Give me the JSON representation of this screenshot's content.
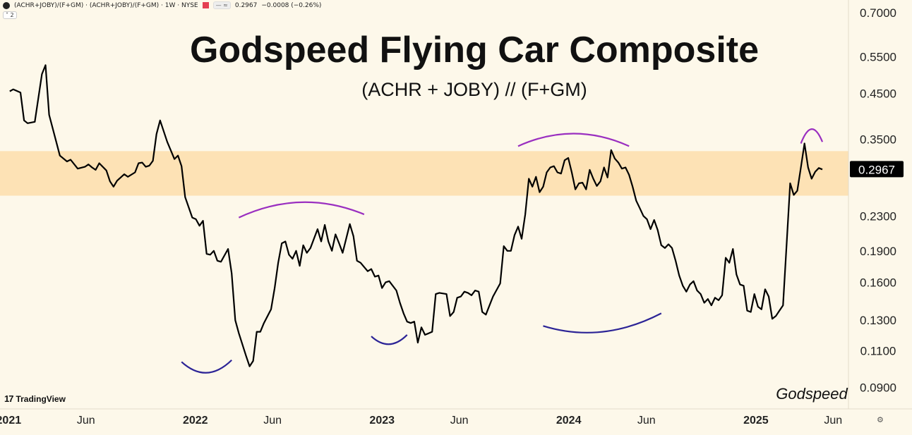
{
  "header": {
    "symbol": "(ACHR+JOBY)/(F+GM) · (ACHR+JOBY)/(F+GM) · 1W · NYSE",
    "price": "0.2967",
    "change": "−0.0008 (−0.26%)",
    "indicator_count": "2"
  },
  "branding": {
    "tradingview": "TradingView",
    "signature": "Godspeed"
  },
  "colors": {
    "background": "#fdf8ea",
    "band": "#fde2b5",
    "line": "#000000",
    "arc_top": "#9a2fc0",
    "arc_bottom": "#2c2496",
    "price_tag_bg": "#000000",
    "price_tag_fg": "#ffffff"
  },
  "icons": [
    "flag-icon",
    "settings-icon",
    "tradingview-logo-icon"
  ],
  "chart_data": {
    "type": "line",
    "title": "Godspeed Flying Car Composite",
    "subtitle": "(ACHR + JOBY) // (F+GM)",
    "xlabel": "",
    "ylabel": "",
    "y_scale": "log",
    "ylim": [
      0.08,
      0.75
    ],
    "x_range": [
      "2020-12-15",
      "2025-07-01"
    ],
    "grid": false,
    "legend": "top-left",
    "x_ticks": [
      {
        "date": "2021-01-01",
        "label": "2021",
        "bold": true
      },
      {
        "date": "2021-06-01",
        "label": "Jun",
        "bold": false
      },
      {
        "date": "2022-01-01",
        "label": "2022",
        "bold": true
      },
      {
        "date": "2022-06-01",
        "label": "Jun",
        "bold": false
      },
      {
        "date": "2023-01-01",
        "label": "2023",
        "bold": true
      },
      {
        "date": "2023-06-01",
        "label": "Jun",
        "bold": false
      },
      {
        "date": "2024-01-01",
        "label": "2024",
        "bold": true
      },
      {
        "date": "2024-06-01",
        "label": "Jun",
        "bold": false
      },
      {
        "date": "2025-01-01",
        "label": "2025",
        "bold": true
      },
      {
        "date": "2025-06-01",
        "label": "Jun",
        "bold": false
      }
    ],
    "y_ticks": [
      {
        "value": 0.7,
        "label": "0.7000"
      },
      {
        "value": 0.55,
        "label": "0.5500"
      },
      {
        "value": 0.45,
        "label": "0.4500"
      },
      {
        "value": 0.35,
        "label": "0.3500"
      },
      {
        "value": 0.23,
        "label": "0.2300"
      },
      {
        "value": 0.19,
        "label": "0.1900"
      },
      {
        "value": 0.16,
        "label": "0.1600"
      },
      {
        "value": 0.13,
        "label": "0.1300"
      },
      {
        "value": 0.11,
        "label": "0.1100"
      },
      {
        "value": 0.09,
        "label": "0.0900"
      }
    ],
    "last_value": 0.2967,
    "last_value_label": "0.2967",
    "band": {
      "low": 0.257,
      "high": 0.328
    },
    "series": [
      {
        "points": [
          [
            "2021-01-03",
            0.455
          ],
          [
            "2021-01-10",
            0.46
          ],
          [
            "2021-01-24",
            0.452
          ],
          [
            "2021-01-31",
            0.388
          ],
          [
            "2021-02-07",
            0.382
          ],
          [
            "2021-02-21",
            0.385
          ],
          [
            "2021-03-07",
            0.5
          ],
          [
            "2021-03-14",
            0.525
          ],
          [
            "2021-03-21",
            0.4
          ],
          [
            "2021-04-04",
            0.345
          ],
          [
            "2021-04-11",
            0.32
          ],
          [
            "2021-04-25",
            0.31
          ],
          [
            "2021-05-02",
            0.313
          ],
          [
            "2021-05-16",
            0.298
          ],
          [
            "2021-05-30",
            0.301
          ],
          [
            "2021-06-06",
            0.305
          ],
          [
            "2021-06-13",
            0.3
          ],
          [
            "2021-06-20",
            0.296
          ],
          [
            "2021-06-27",
            0.307
          ],
          [
            "2021-07-11",
            0.295
          ],
          [
            "2021-07-18",
            0.278
          ],
          [
            "2021-07-25",
            0.27
          ],
          [
            "2021-08-01",
            0.279
          ],
          [
            "2021-08-15",
            0.289
          ],
          [
            "2021-08-22",
            0.285
          ],
          [
            "2021-09-05",
            0.292
          ],
          [
            "2021-09-12",
            0.307
          ],
          [
            "2021-09-19",
            0.308
          ],
          [
            "2021-09-26",
            0.301
          ],
          [
            "2021-10-03",
            0.303
          ],
          [
            "2021-10-10",
            0.311
          ],
          [
            "2021-10-17",
            0.36
          ],
          [
            "2021-10-24",
            0.388
          ],
          [
            "2021-11-07",
            0.345
          ],
          [
            "2021-11-21",
            0.314
          ],
          [
            "2021-11-28",
            0.32
          ],
          [
            "2021-12-05",
            0.302
          ],
          [
            "2021-12-12",
            0.255
          ],
          [
            "2021-12-26",
            0.228
          ],
          [
            "2022-01-02",
            0.226
          ],
          [
            "2022-01-09",
            0.218
          ],
          [
            "2022-01-16",
            0.224
          ],
          [
            "2022-01-23",
            0.187
          ],
          [
            "2022-01-30",
            0.186
          ],
          [
            "2022-02-06",
            0.19
          ],
          [
            "2022-02-13",
            0.18
          ],
          [
            "2022-02-20",
            0.179
          ],
          [
            "2022-03-06",
            0.192
          ],
          [
            "2022-03-13",
            0.168
          ],
          [
            "2022-03-20",
            0.13
          ],
          [
            "2022-03-27",
            0.121
          ],
          [
            "2022-04-10",
            0.107
          ],
          [
            "2022-04-17",
            0.101
          ],
          [
            "2022-04-24",
            0.104
          ],
          [
            "2022-05-01",
            0.122
          ],
          [
            "2022-05-08",
            0.122
          ],
          [
            "2022-05-15",
            0.128
          ],
          [
            "2022-05-29",
            0.138
          ],
          [
            "2022-06-05",
            0.155
          ],
          [
            "2022-06-12",
            0.178
          ],
          [
            "2022-06-19",
            0.198
          ],
          [
            "2022-06-26",
            0.2
          ],
          [
            "2022-07-03",
            0.186
          ],
          [
            "2022-07-10",
            0.182
          ],
          [
            "2022-07-17",
            0.19
          ],
          [
            "2022-07-24",
            0.175
          ],
          [
            "2022-07-31",
            0.196
          ],
          [
            "2022-08-07",
            0.188
          ],
          [
            "2022-08-14",
            0.193
          ],
          [
            "2022-08-28",
            0.214
          ],
          [
            "2022-09-04",
            0.2
          ],
          [
            "2022-09-11",
            0.219
          ],
          [
            "2022-09-18",
            0.2
          ],
          [
            "2022-09-25",
            0.19
          ],
          [
            "2022-10-02",
            0.208
          ],
          [
            "2022-10-09",
            0.198
          ],
          [
            "2022-10-16",
            0.188
          ],
          [
            "2022-10-30",
            0.22
          ],
          [
            "2022-11-06",
            0.206
          ],
          [
            "2022-11-13",
            0.18
          ],
          [
            "2022-11-20",
            0.178
          ],
          [
            "2022-12-04",
            0.17
          ],
          [
            "2022-12-11",
            0.172
          ],
          [
            "2022-12-18",
            0.165
          ],
          [
            "2022-12-25",
            0.166
          ],
          [
            "2023-01-01",
            0.155
          ],
          [
            "2023-01-08",
            0.16
          ],
          [
            "2023-01-15",
            0.161
          ],
          [
            "2023-01-29",
            0.153
          ],
          [
            "2023-02-05",
            0.143
          ],
          [
            "2023-02-12",
            0.135
          ],
          [
            "2023-02-19",
            0.129
          ],
          [
            "2023-02-26",
            0.128
          ],
          [
            "2023-03-05",
            0.129
          ],
          [
            "2023-03-12",
            0.115
          ],
          [
            "2023-03-19",
            0.125
          ],
          [
            "2023-03-26",
            0.12
          ],
          [
            "2023-04-02",
            0.121
          ],
          [
            "2023-04-09",
            0.122
          ],
          [
            "2023-04-16",
            0.15
          ],
          [
            "2023-04-23",
            0.151
          ],
          [
            "2023-05-07",
            0.15
          ],
          [
            "2023-05-14",
            0.133
          ],
          [
            "2023-05-21",
            0.136
          ],
          [
            "2023-05-28",
            0.147
          ],
          [
            "2023-06-04",
            0.148
          ],
          [
            "2023-06-11",
            0.152
          ],
          [
            "2023-06-18",
            0.151
          ],
          [
            "2023-06-25",
            0.149
          ],
          [
            "2023-07-02",
            0.153
          ],
          [
            "2023-07-09",
            0.152
          ],
          [
            "2023-07-16",
            0.136
          ],
          [
            "2023-07-23",
            0.134
          ],
          [
            "2023-08-06",
            0.148
          ],
          [
            "2023-08-20",
            0.159
          ],
          [
            "2023-08-27",
            0.195
          ],
          [
            "2023-09-03",
            0.19
          ],
          [
            "2023-09-10",
            0.19
          ],
          [
            "2023-09-17",
            0.207
          ],
          [
            "2023-09-24",
            0.217
          ],
          [
            "2023-10-01",
            0.203
          ],
          [
            "2023-10-08",
            0.232
          ],
          [
            "2023-10-15",
            0.282
          ],
          [
            "2023-10-22",
            0.27
          ],
          [
            "2023-10-29",
            0.285
          ],
          [
            "2023-11-05",
            0.262
          ],
          [
            "2023-11-12",
            0.27
          ],
          [
            "2023-11-19",
            0.292
          ],
          [
            "2023-11-26",
            0.3
          ],
          [
            "2023-12-03",
            0.302
          ],
          [
            "2023-12-10",
            0.292
          ],
          [
            "2023-12-17",
            0.29
          ],
          [
            "2023-12-24",
            0.312
          ],
          [
            "2023-12-31",
            0.316
          ],
          [
            "2024-01-07",
            0.292
          ],
          [
            "2024-01-14",
            0.266
          ],
          [
            "2024-01-21",
            0.275
          ],
          [
            "2024-01-28",
            0.276
          ],
          [
            "2024-02-04",
            0.266
          ],
          [
            "2024-02-11",
            0.296
          ],
          [
            "2024-02-18",
            0.282
          ],
          [
            "2024-02-25",
            0.271
          ],
          [
            "2024-03-03",
            0.278
          ],
          [
            "2024-03-10",
            0.3
          ],
          [
            "2024-03-17",
            0.284
          ],
          [
            "2024-03-24",
            0.33
          ],
          [
            "2024-03-31",
            0.315
          ],
          [
            "2024-04-07",
            0.308
          ],
          [
            "2024-04-14",
            0.298
          ],
          [
            "2024-04-21",
            0.3
          ],
          [
            "2024-04-28",
            0.288
          ],
          [
            "2024-05-05",
            0.27
          ],
          [
            "2024-05-12",
            0.25
          ],
          [
            "2024-05-19",
            0.24
          ],
          [
            "2024-05-26",
            0.23
          ],
          [
            "2024-06-02",
            0.226
          ],
          [
            "2024-06-09",
            0.214
          ],
          [
            "2024-06-16",
            0.225
          ],
          [
            "2024-06-23",
            0.213
          ],
          [
            "2024-06-30",
            0.196
          ],
          [
            "2024-07-07",
            0.193
          ],
          [
            "2024-07-14",
            0.197
          ],
          [
            "2024-07-21",
            0.193
          ],
          [
            "2024-07-28",
            0.18
          ],
          [
            "2024-08-04",
            0.166
          ],
          [
            "2024-08-11",
            0.157
          ],
          [
            "2024-08-18",
            0.152
          ],
          [
            "2024-08-25",
            0.158
          ],
          [
            "2024-09-01",
            0.161
          ],
          [
            "2024-09-08",
            0.153
          ],
          [
            "2024-09-15",
            0.15
          ],
          [
            "2024-09-22",
            0.143
          ],
          [
            "2024-09-29",
            0.146
          ],
          [
            "2024-10-06",
            0.141
          ],
          [
            "2024-10-13",
            0.147
          ],
          [
            "2024-10-20",
            0.145
          ],
          [
            "2024-10-27",
            0.149
          ],
          [
            "2024-11-03",
            0.183
          ],
          [
            "2024-11-10",
            0.178
          ],
          [
            "2024-11-17",
            0.192
          ],
          [
            "2024-11-24",
            0.167
          ],
          [
            "2024-12-01",
            0.158
          ],
          [
            "2024-12-08",
            0.157
          ],
          [
            "2024-12-15",
            0.137
          ],
          [
            "2024-12-22",
            0.136
          ],
          [
            "2024-12-29",
            0.15
          ],
          [
            "2025-01-05",
            0.14
          ],
          [
            "2025-01-12",
            0.138
          ],
          [
            "2025-01-19",
            0.154
          ],
          [
            "2025-01-26",
            0.148
          ],
          [
            "2025-02-02",
            0.131
          ],
          [
            "2025-02-09",
            0.133
          ],
          [
            "2025-02-16",
            0.137
          ],
          [
            "2025-02-23",
            0.141
          ],
          [
            "2025-03-02",
            0.196
          ],
          [
            "2025-03-09",
            0.275
          ],
          [
            "2025-03-16",
            0.258
          ],
          [
            "2025-03-23",
            0.264
          ],
          [
            "2025-03-30",
            0.3
          ],
          [
            "2025-04-06",
            0.342
          ],
          [
            "2025-04-13",
            0.3
          ],
          [
            "2025-04-20",
            0.282
          ],
          [
            "2025-04-27",
            0.293
          ],
          [
            "2025-05-04",
            0.299
          ],
          [
            "2025-05-11",
            0.2967
          ]
        ]
      }
    ],
    "annotations": {
      "top_arcs": [
        {
          "x": [
            "2022-03-27",
            "2022-11-27"
          ],
          "y": [
            0.228,
            0.232
          ],
          "peak": 0.248
        },
        {
          "x": [
            "2023-09-24",
            "2024-04-28"
          ],
          "y": [
            0.337,
            0.337
          ],
          "peak": 0.361
        },
        {
          "x": [
            "2025-03-30",
            "2025-05-11"
          ],
          "y": [
            0.342,
            0.345
          ],
          "peak": 0.37
        }
      ],
      "bottom_arcs": [
        {
          "x": [
            "2021-12-05",
            "2022-03-13"
          ],
          "y": [
            0.1035,
            0.1045
          ],
          "trough": 0.0975
        },
        {
          "x": [
            "2022-12-11",
            "2023-02-19"
          ],
          "y": [
            0.119,
            0.12
          ],
          "trough": 0.114
        },
        {
          "x": [
            "2023-11-12",
            "2024-06-30"
          ],
          "y": [
            0.126,
            0.135
          ],
          "trough": 0.122
        }
      ]
    }
  }
}
